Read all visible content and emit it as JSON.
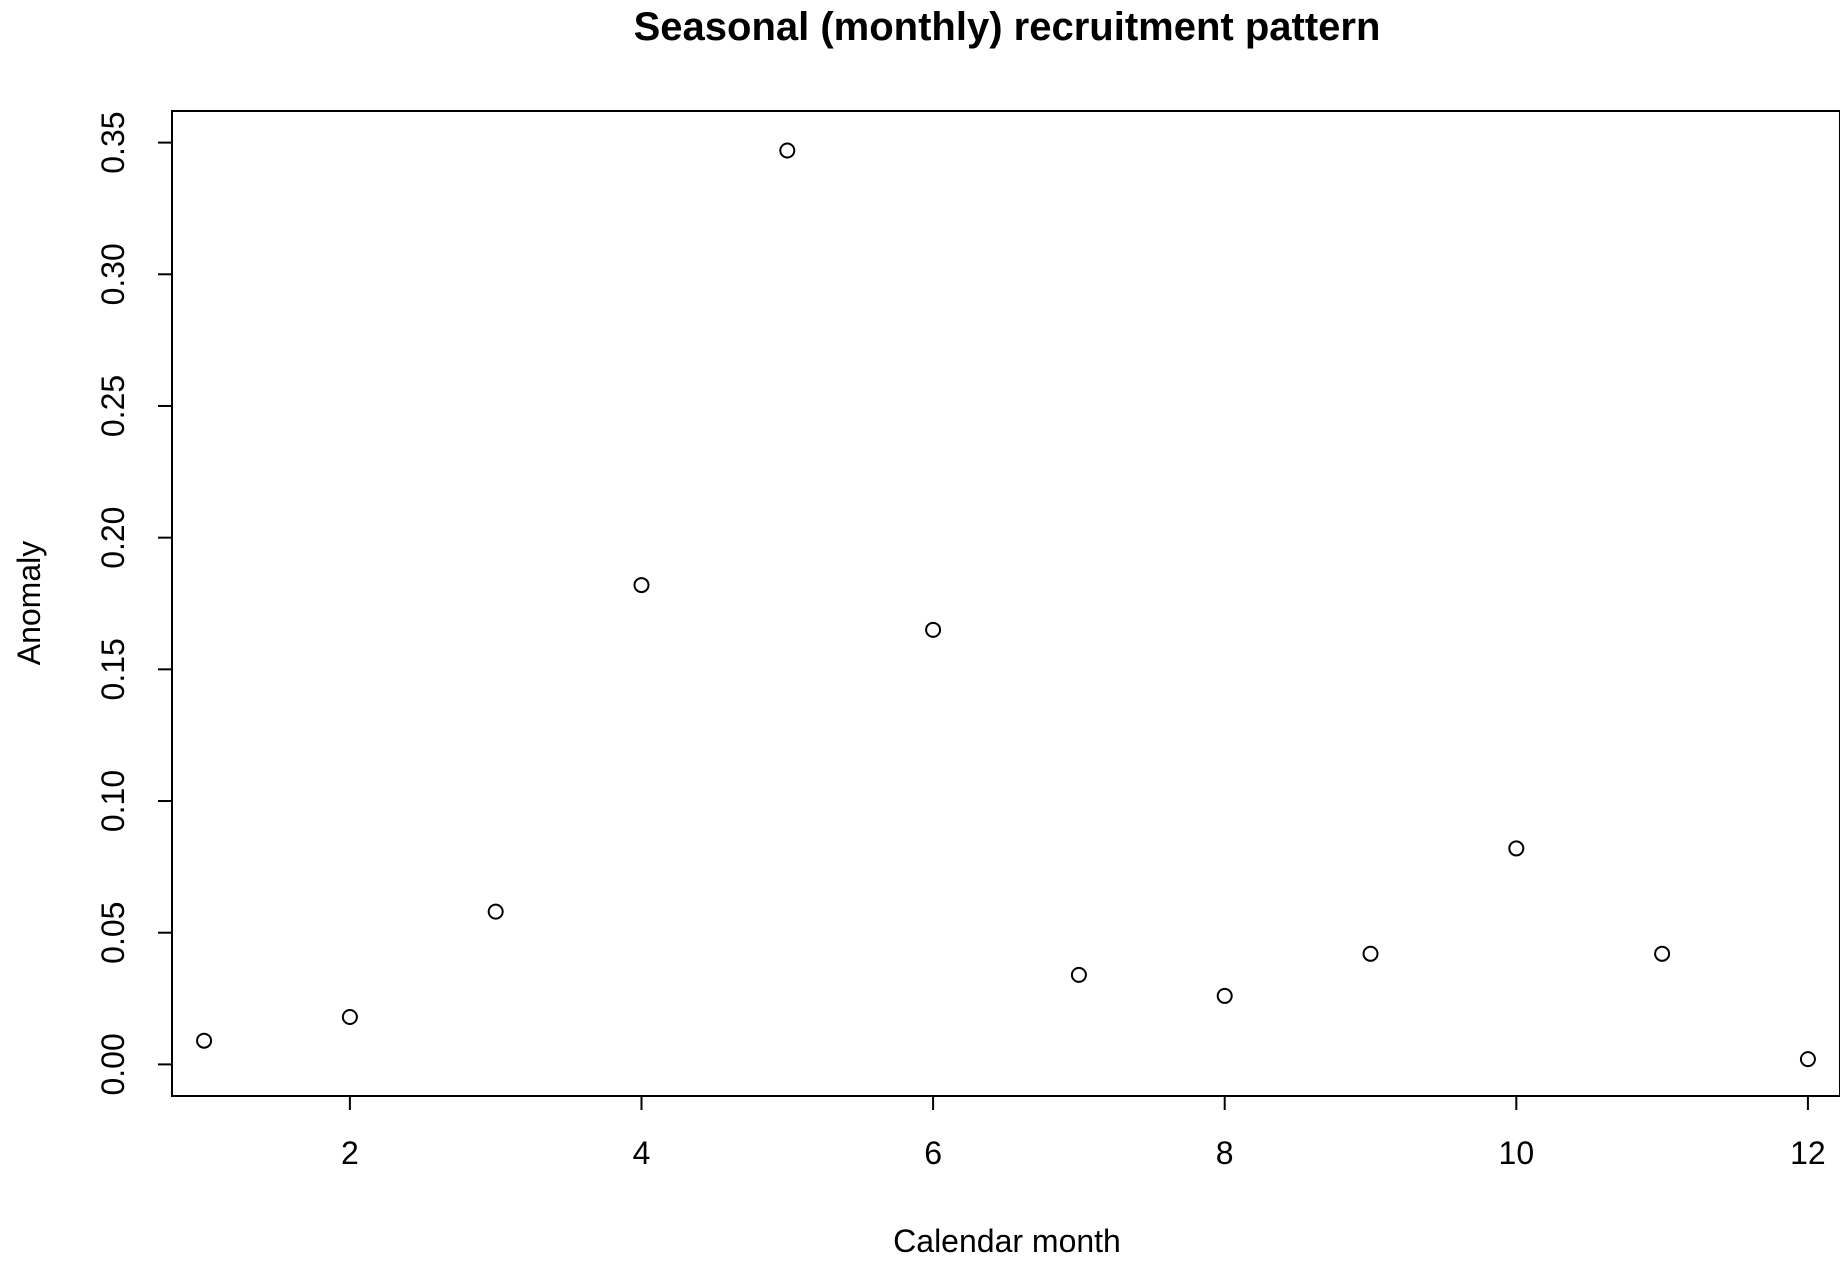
{
  "chart_data": {
    "type": "scatter",
    "title": "Seasonal (monthly) recruitment pattern",
    "xlabel": "Calendar month",
    "ylabel": "Anomaly",
    "xlim": [
      0.78,
      12.22
    ],
    "ylim": [
      -0.012,
      0.362
    ],
    "xticks": [
      2,
      4,
      6,
      8,
      10,
      12
    ],
    "xtick_labels": [
      "2",
      "4",
      "6",
      "8",
      "10",
      "12"
    ],
    "yticks": [
      0.0,
      0.05,
      0.1,
      0.15,
      0.2,
      0.25,
      0.3,
      0.35
    ],
    "ytick_labels": [
      "0.00",
      "0.05",
      "0.10",
      "0.15",
      "0.20",
      "0.25",
      "0.30",
      "0.35"
    ],
    "grid": false,
    "legend": "none",
    "marker": "open-circle",
    "color": "#000000",
    "series": [
      {
        "x": [
          1,
          2,
          3,
          4,
          5,
          6,
          7,
          8,
          9,
          10,
          11,
          12
        ],
        "y": [
          0.009,
          0.018,
          0.058,
          0.182,
          0.347,
          0.165,
          0.034,
          0.026,
          0.042,
          0.082,
          0.042,
          0.002
        ]
      }
    ]
  }
}
